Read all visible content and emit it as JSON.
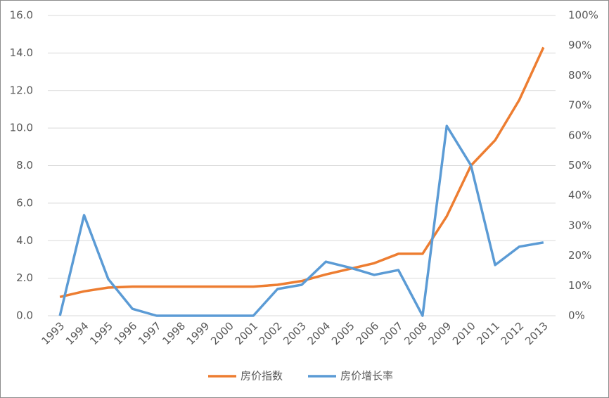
{
  "chart_data": {
    "type": "line",
    "categories": [
      "1993",
      "1994",
      "1995",
      "1996",
      "1997",
      "1998",
      "1999",
      "2000",
      "2001",
      "2002",
      "2003",
      "2004",
      "2005",
      "2006",
      "2007",
      "2008",
      "2009",
      "2010",
      "2011",
      "2012",
      "2013"
    ],
    "series": [
      {
        "name": "房价指数",
        "color": "#ed7d31",
        "values": [
          1.0,
          1.3,
          1.5,
          1.55,
          1.55,
          1.55,
          1.55,
          1.55,
          1.55,
          1.65,
          1.85,
          2.2,
          2.5,
          2.8,
          3.3,
          3.3,
          5.3,
          8.0,
          9.35,
          11.5,
          14.3
        ]
      },
      {
        "name": "房价增长率",
        "color": "#5b9bd5",
        "axis": "y2",
        "values": [
          0,
          33.5,
          12.2,
          2.3,
          0,
          0,
          0,
          0,
          0,
          8.9,
          10.3,
          18,
          16,
          13.6,
          15.2,
          0,
          63.2,
          50.1,
          16.9,
          23,
          24.4
        ]
      }
    ],
    "ylim": [
      0,
      16
    ],
    "yticks": [
      {
        "value": 0,
        "label": "0.0"
      },
      {
        "value": 2,
        "label": "2.0"
      },
      {
        "value": 4,
        "label": "4.0"
      },
      {
        "value": 6,
        "label": "6.0"
      },
      {
        "value": 8,
        "label": "8.0"
      },
      {
        "value": 10,
        "label": "10.0"
      },
      {
        "value": 12,
        "label": "12.0"
      },
      {
        "value": 14,
        "label": "14.0"
      },
      {
        "value": 16,
        "label": "16.0"
      }
    ],
    "y2lim": [
      0,
      100
    ],
    "y2ticks": [
      {
        "value": 0,
        "label": "0%"
      },
      {
        "value": 10,
        "label": "10%"
      },
      {
        "value": 20,
        "label": "20%"
      },
      {
        "value": 30,
        "label": "30%"
      },
      {
        "value": 40,
        "label": "40%"
      },
      {
        "value": 50,
        "label": "50%"
      },
      {
        "value": 60,
        "label": "60%"
      },
      {
        "value": 70,
        "label": "70%"
      },
      {
        "value": 80,
        "label": "80%"
      },
      {
        "value": 90,
        "label": "90%"
      },
      {
        "value": 100,
        "label": "100%"
      }
    ],
    "grid": true,
    "legend": "bottom"
  }
}
